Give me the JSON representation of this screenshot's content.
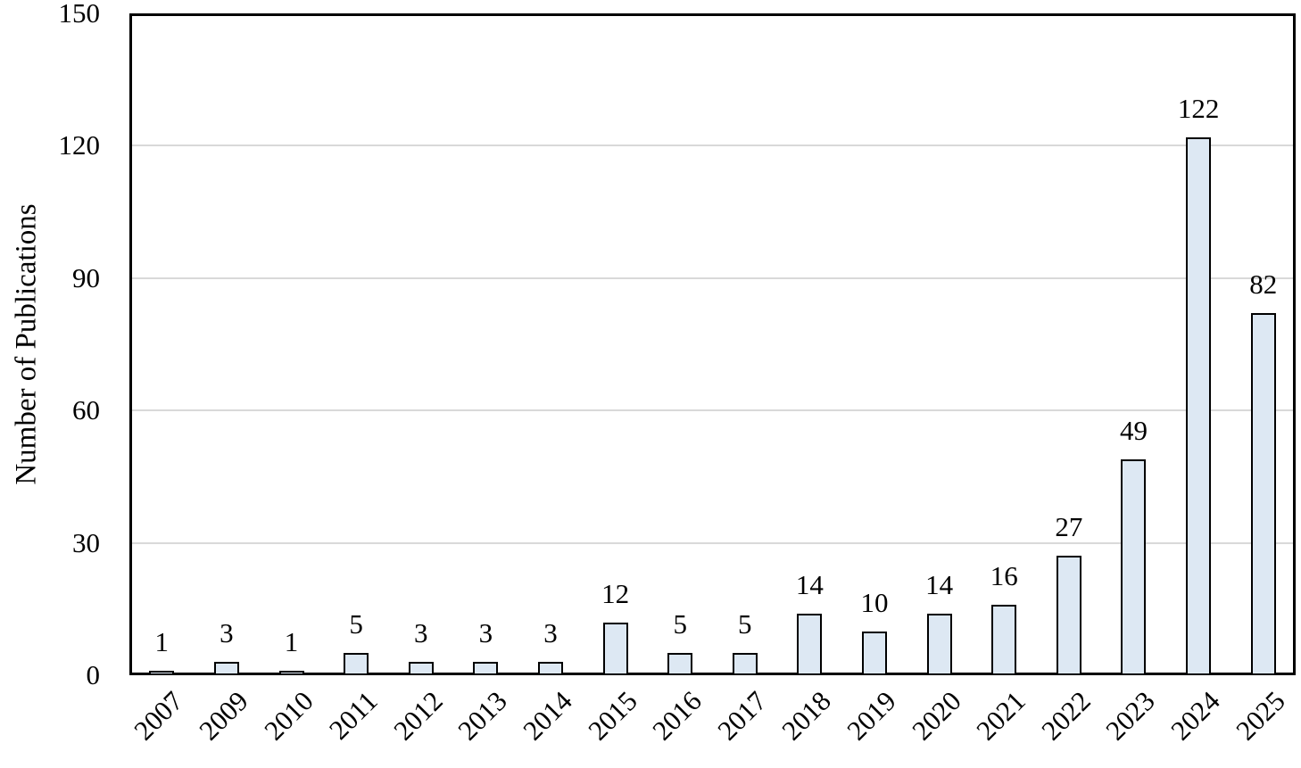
{
  "chart_data": {
    "type": "bar",
    "title": "",
    "categories": [
      "2007",
      "2009",
      "2010",
      "2011",
      "2012",
      "2013",
      "2014",
      "2015",
      "2016",
      "2017",
      "2018",
      "2019",
      "2020",
      "2021",
      "2022",
      "2023",
      "2024",
      "2025"
    ],
    "values": [
      1,
      3,
      1,
      5,
      3,
      3,
      3,
      12,
      5,
      5,
      14,
      10,
      14,
      16,
      27,
      49,
      122,
      82
    ],
    "data_labels_visible": true,
    "xlabel": "",
    "ylabel": "Number of Publications",
    "ylim": [
      0,
      150
    ],
    "yticks": [
      0,
      30,
      60,
      90,
      120,
      150
    ],
    "grid": "horizontal",
    "legend_position": "none",
    "colors": {
      "bar_fill": "#dde8f3",
      "bar_border": "#000000",
      "gridline": "#d9d9d9",
      "axis_border": "#000000",
      "text": "#000000",
      "background": "#ffffff"
    }
  }
}
